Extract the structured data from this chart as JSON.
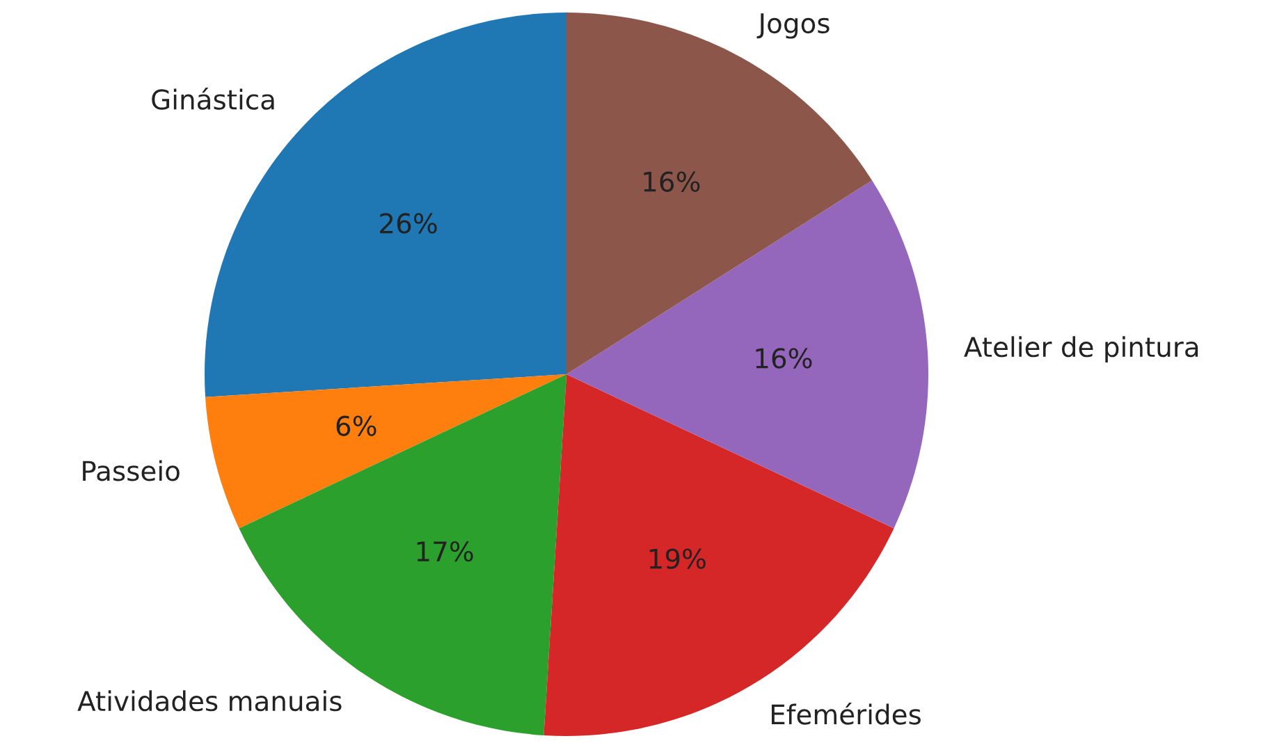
{
  "chart_data": {
    "type": "pie",
    "categories": [
      "Ginástica",
      "Passeio",
      "Atividades manuais",
      "Efemérides",
      "Atelier de pintura",
      "Jogos"
    ],
    "values": [
      26,
      6,
      17,
      19,
      16,
      16
    ],
    "value_labels": [
      "26%",
      "6%",
      "17%",
      "19%",
      "16%",
      "16%"
    ],
    "colors": [
      "#1f77b4",
      "#ff7f0e",
      "#2ca02c",
      "#d62728",
      "#9467bd",
      "#8c564b"
    ],
    "legend": false
  }
}
